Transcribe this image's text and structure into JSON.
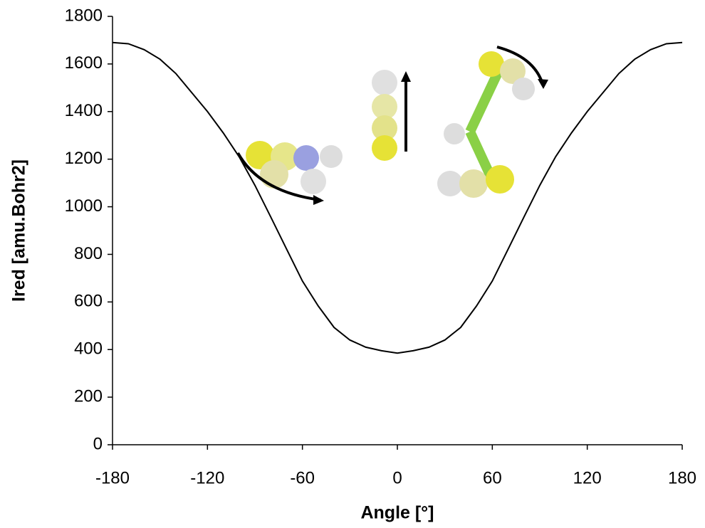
{
  "chart_data": {
    "type": "line",
    "x_label": "Angle [°]",
    "y_label": "Ired [amu.Bohr2]",
    "x": [
      -180,
      -170,
      -160,
      -150,
      -140,
      -130,
      -120,
      -110,
      -100,
      -90,
      -80,
      -70,
      -60,
      -50,
      -40,
      -30,
      -20,
      -10,
      0,
      10,
      20,
      30,
      40,
      50,
      60,
      70,
      80,
      90,
      100,
      110,
      120,
      130,
      140,
      150,
      160,
      170,
      180
    ],
    "series": [
      {
        "color": "#000000",
        "values": [
          1690,
          1685,
          1660,
          1620,
          1560,
          1480,
          1400,
          1310,
          1210,
          1090,
          957,
          822,
          688,
          583,
          493,
          440,
          410,
          395,
          385,
          395,
          410,
          440,
          493,
          583,
          688,
          822,
          957,
          1090,
          1210,
          1310,
          1400,
          1480,
          1560,
          1620,
          1660,
          1685,
          1690
        ]
      }
    ],
    "xlim": [
      -180,
      180
    ],
    "xticks": [
      -180,
      -120,
      -60,
      0,
      60,
      120,
      180
    ],
    "ylim": [
      0,
      1800
    ],
    "yticks": [
      0,
      200,
      400,
      600,
      800,
      1000,
      1200,
      1400,
      1600,
      1800
    ],
    "grid": false
  }
}
